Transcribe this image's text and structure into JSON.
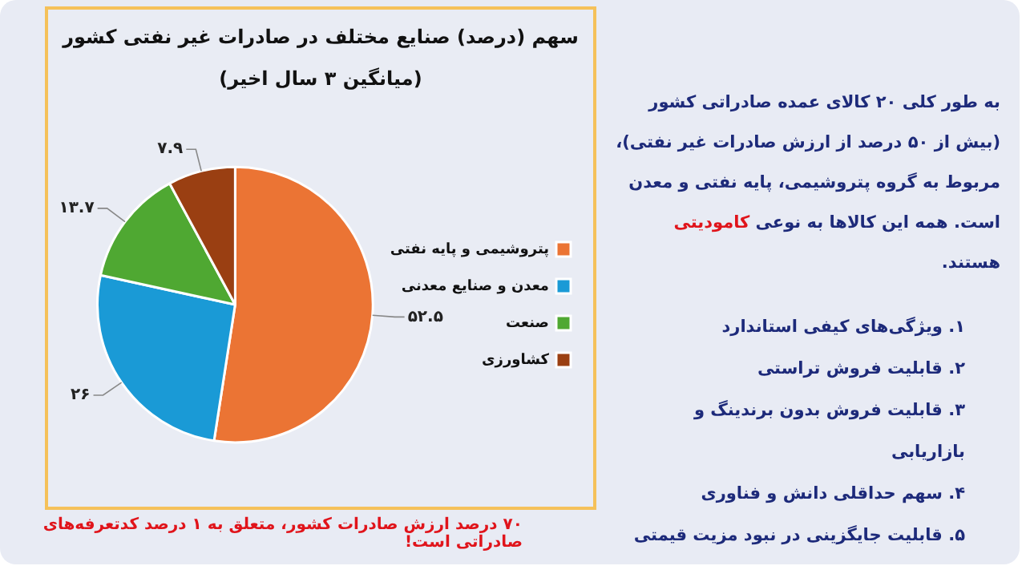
{
  "chart_data": {
    "type": "pie",
    "title": "سهم (درصد) صنایع مختلف در صادرات غیر نفتی کشور",
    "subtitle": "(میانگین ۳ سال اخیر)",
    "categories": [
      "پتروشیمی و پایه نفتی",
      "معدن و صنایع معدنی",
      "صنعت",
      "کشاورزی"
    ],
    "values": [
      52.5,
      26,
      13.7,
      7.9
    ],
    "colors": [
      "#eb7434",
      "#1a9ad6",
      "#4fa832",
      "#9a3f12"
    ],
    "value_labels": [
      "۵۲.۵",
      "۲۶",
      "۱۳.۷",
      "۷.۹"
    ],
    "legend": "right",
    "annotations": [
      "به طور کلی ۲۰ کالای عمده صادراتی کشور (بیش از ۵۰ درصد از ارزش صادرات غیر نفتی)، مربوط به گروه پتروشیمی، پایه نفتی و معدن است. همه این کالاها به نوعی",
      "کامودیتی",
      "هستند.",
      "۱.   ویژگی‌های کیفی استاندارد",
      "۲.   قابلیت فروش تراستی",
      "۳.   قابلیت فروش بدون برندینگ و بازاریابی",
      "۴.   سهم حداقلی دانش و فناوری",
      "۵.   قابلیت جایگزینی در نبود مزیت قیمتی",
      "۷۰ درصد ارزش صادرات کشور، متعلق به ۱ درصد کدتعرفه‌های صادراتی است!"
    ]
  }
}
